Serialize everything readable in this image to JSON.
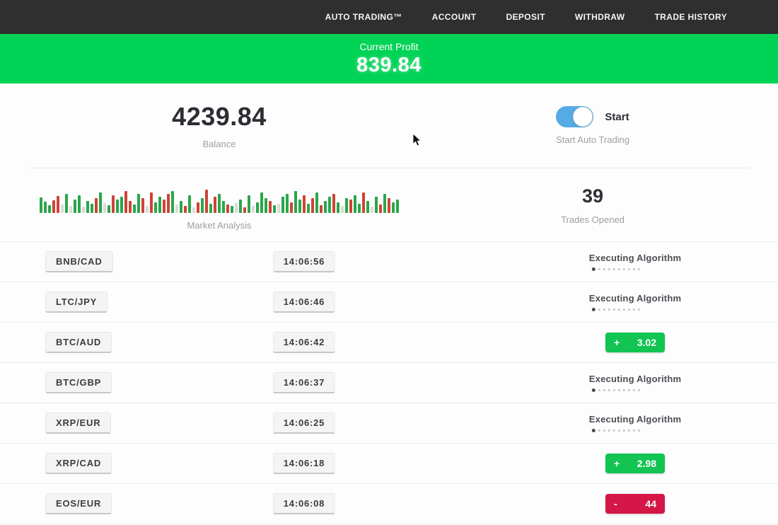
{
  "nav": {
    "items": [
      {
        "label": "AUTO TRADING™"
      },
      {
        "label": "ACCOUNT"
      },
      {
        "label": "DEPOSIT"
      },
      {
        "label": "WITHDRAW"
      },
      {
        "label": "TRADE HISTORY"
      }
    ]
  },
  "profit_banner": {
    "label": "Current Profit",
    "value": "839.84",
    "bg_color": "#00d355"
  },
  "stats": {
    "balance": {
      "value": "4239.84",
      "label": "Balance"
    },
    "auto_trading": {
      "toggle_label": "Start",
      "label": "Start Auto Trading",
      "toggle_on": true,
      "toggle_color": "#55abe4"
    },
    "trades_opened": {
      "value": "39",
      "label": "Trades Opened"
    }
  },
  "market_analysis": {
    "label": "Market Analysis",
    "bar_colors": {
      "g": "#2aa64b",
      "r": "#cd4337",
      "p": "#d9dbd9"
    },
    "bars": [
      [
        22,
        "g"
      ],
      [
        16,
        "g"
      ],
      [
        11,
        "g"
      ],
      [
        18,
        "r"
      ],
      [
        24,
        "r"
      ],
      [
        12,
        "p"
      ],
      [
        27,
        "g"
      ],
      [
        10,
        "p"
      ],
      [
        19,
        "g"
      ],
      [
        25,
        "g"
      ],
      [
        9,
        "p"
      ],
      [
        17,
        "g"
      ],
      [
        13,
        "g"
      ],
      [
        21,
        "r"
      ],
      [
        29,
        "g"
      ],
      [
        14,
        "p"
      ],
      [
        11,
        "g"
      ],
      [
        25,
        "r"
      ],
      [
        19,
        "g"
      ],
      [
        23,
        "g"
      ],
      [
        31,
        "r"
      ],
      [
        17,
        "r"
      ],
      [
        12,
        "g"
      ],
      [
        27,
        "g"
      ],
      [
        21,
        "r"
      ],
      [
        10,
        "p"
      ],
      [
        29,
        "r"
      ],
      [
        15,
        "g"
      ],
      [
        23,
        "g"
      ],
      [
        19,
        "r"
      ],
      [
        27,
        "r"
      ],
      [
        31,
        "g"
      ],
      [
        12,
        "p"
      ],
      [
        17,
        "g"
      ],
      [
        10,
        "r"
      ],
      [
        25,
        "g"
      ],
      [
        8,
        "p"
      ],
      [
        15,
        "r"
      ],
      [
        21,
        "g"
      ],
      [
        33,
        "r"
      ],
      [
        13,
        "g"
      ],
      [
        23,
        "r"
      ],
      [
        27,
        "g"
      ],
      [
        17,
        "g"
      ],
      [
        12,
        "r"
      ],
      [
        10,
        "g"
      ],
      [
        14,
        "p"
      ],
      [
        19,
        "g"
      ],
      [
        8,
        "r"
      ],
      [
        25,
        "g"
      ],
      [
        10,
        "p"
      ],
      [
        15,
        "g"
      ],
      [
        29,
        "g"
      ],
      [
        21,
        "g"
      ],
      [
        17,
        "r"
      ],
      [
        11,
        "g"
      ],
      [
        13,
        "p"
      ],
      [
        23,
        "g"
      ],
      [
        27,
        "g"
      ],
      [
        15,
        "r"
      ],
      [
        31,
        "g"
      ],
      [
        19,
        "g"
      ],
      [
        25,
        "r"
      ],
      [
        13,
        "g"
      ],
      [
        21,
        "r"
      ],
      [
        29,
        "g"
      ],
      [
        11,
        "r"
      ],
      [
        17,
        "g"
      ],
      [
        23,
        "g"
      ],
      [
        27,
        "r"
      ],
      [
        15,
        "g"
      ],
      [
        10,
        "p"
      ],
      [
        21,
        "g"
      ],
      [
        19,
        "r"
      ],
      [
        25,
        "g"
      ],
      [
        13,
        "g"
      ],
      [
        29,
        "r"
      ],
      [
        17,
        "g"
      ],
      [
        9,
        "p"
      ],
      [
        23,
        "g"
      ],
      [
        12,
        "r"
      ],
      [
        27,
        "g"
      ],
      [
        21,
        "r"
      ],
      [
        15,
        "g"
      ],
      [
        19,
        "g"
      ]
    ]
  },
  "trades": {
    "executing_label": "Executing Algorithm",
    "dots_total": 10,
    "dots_active": 1,
    "result_colors": {
      "profit": "#12c452",
      "loss": "#d41746"
    },
    "rows": [
      {
        "pair": "BNB/CAD",
        "time": "14:06:56",
        "status": "executing"
      },
      {
        "pair": "LTC/JPY",
        "time": "14:06:46",
        "status": "executing"
      },
      {
        "pair": "BTC/AUD",
        "time": "14:06:42",
        "status": "profit",
        "result_sign": "+",
        "result_value": "3.02"
      },
      {
        "pair": "BTC/GBP",
        "time": "14:06:37",
        "status": "executing"
      },
      {
        "pair": "XRP/EUR",
        "time": "14:06:25",
        "status": "executing"
      },
      {
        "pair": "XRP/CAD",
        "time": "14:06:18",
        "status": "profit",
        "result_sign": "+",
        "result_value": "2.98"
      },
      {
        "pair": "EOS/EUR",
        "time": "14:06:08",
        "status": "loss",
        "result_sign": "-",
        "result_value": "44"
      }
    ]
  }
}
